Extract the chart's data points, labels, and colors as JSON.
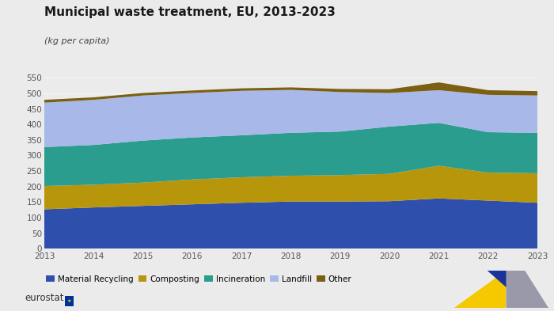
{
  "title": "Municipal waste treatment, EU, 2013-2023",
  "subtitle": "(kg per capita)",
  "years": [
    2013,
    2014,
    2015,
    2016,
    2017,
    2018,
    2019,
    2020,
    2021,
    2022,
    2023
  ],
  "series": {
    "Material Recycling": [
      127,
      133,
      138,
      143,
      148,
      152,
      152,
      153,
      162,
      155,
      148
    ],
    "Composting": [
      75,
      73,
      75,
      80,
      82,
      83,
      85,
      88,
      105,
      90,
      95
    ],
    "Incineration": [
      125,
      128,
      135,
      135,
      135,
      138,
      140,
      152,
      138,
      130,
      130
    ],
    "Landfill": [
      143,
      145,
      145,
      143,
      143,
      138,
      127,
      108,
      105,
      120,
      120
    ],
    "Other": [
      9,
      8,
      8,
      8,
      8,
      8,
      10,
      12,
      25,
      15,
      14
    ]
  },
  "colors": {
    "Material Recycling": "#2e4fac",
    "Composting": "#b8960c",
    "Incineration": "#2a9d8f",
    "Landfill": "#a8b8e8",
    "Other": "#7a6010"
  },
  "ylim": [
    0,
    550
  ],
  "yticks": [
    0,
    50,
    100,
    150,
    200,
    250,
    300,
    350,
    400,
    450,
    500,
    550
  ],
  "background_color": "#ebebeb",
  "plot_background": "#ebebeb",
  "grid_color": "#ffffff",
  "title_fontsize": 11,
  "subtitle_fontsize": 8,
  "legend_fontsize": 7.5,
  "tick_fontsize": 7.5
}
